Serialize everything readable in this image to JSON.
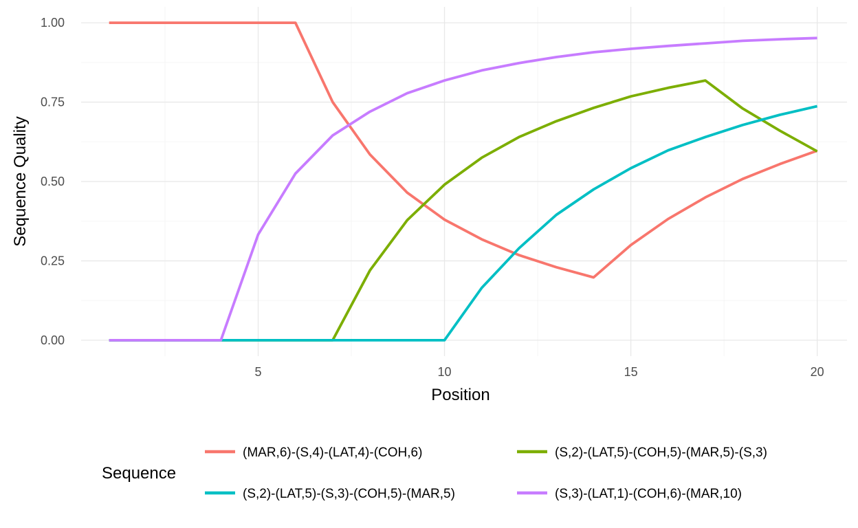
{
  "chart_data": {
    "type": "line",
    "xlabel": "Position",
    "ylabel": "Sequence Quality",
    "xlim": [
      0.25,
      20.8
    ],
    "ylim": [
      -0.05,
      1.05
    ],
    "xticks": [
      5,
      10,
      15,
      20
    ],
    "yticks": [
      0.0,
      0.25,
      0.5,
      0.75,
      1.0
    ],
    "ytick_labels": [
      "0.00",
      "0.25",
      "0.50",
      "0.75",
      "1.00"
    ],
    "grid": true,
    "legend_title": "Sequence",
    "legend_position": "bottom",
    "x": [
      1,
      2,
      3,
      4,
      5,
      6,
      7,
      8,
      9,
      10,
      11,
      12,
      13,
      14,
      15,
      16,
      17,
      18,
      19,
      20
    ],
    "series": [
      {
        "name": "(MAR,6)-(S,4)-(LAT,4)-(COH,6)",
        "color": "#F8766D",
        "values": [
          1.0,
          1.0,
          1.0,
          1.0,
          1.0,
          1.0,
          0.75,
          0.585,
          0.465,
          0.38,
          0.318,
          0.268,
          0.23,
          0.198,
          0.3,
          0.382,
          0.45,
          0.508,
          0.555,
          0.597
        ]
      },
      {
        "name": "(S,2)-(LAT,5)-(COH,5)-(MAR,5)-(S,3)",
        "color": "#7CAE00",
        "values": [
          0.0,
          0.0,
          0.0,
          0.0,
          0.0,
          0.0,
          0.0,
          0.22,
          0.378,
          0.49,
          0.575,
          0.64,
          0.69,
          0.732,
          0.768,
          0.795,
          0.818,
          0.73,
          0.66,
          0.595
        ]
      },
      {
        "name": "(S,2)-(LAT,5)-(S,3)-(COH,5)-(MAR,5)",
        "color": "#00BFC4",
        "values": [
          0.0,
          0.0,
          0.0,
          0.0,
          0.0,
          0.0,
          0.0,
          0.0,
          0.0,
          0.0,
          0.165,
          0.29,
          0.395,
          0.475,
          0.542,
          0.598,
          0.64,
          0.678,
          0.71,
          0.737
        ]
      },
      {
        "name": "(S,3)-(LAT,1)-(COH,6)-(MAR,10)",
        "color": "#C77CFF",
        "values": [
          0.0,
          0.0,
          0.0,
          0.0,
          0.333,
          0.525,
          0.645,
          0.72,
          0.778,
          0.818,
          0.85,
          0.873,
          0.892,
          0.907,
          0.918,
          0.927,
          0.935,
          0.943,
          0.948,
          0.952
        ]
      }
    ],
    "legend_order": [
      0,
      1,
      2,
      3
    ]
  }
}
